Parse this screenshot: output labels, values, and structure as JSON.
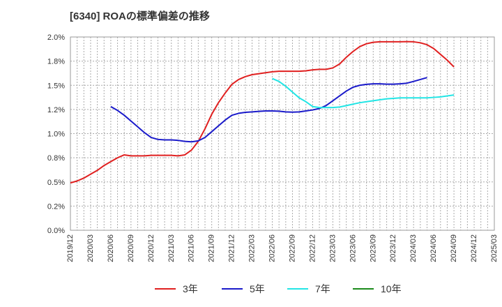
{
  "chart_data": {
    "type": "line",
    "title": "[6340]  ROAの標準偏差の推移",
    "xlabel": "",
    "ylabel": "",
    "ylim": [
      0,
      2.0
    ],
    "yticks": [
      "0.0%",
      "0.2%",
      "0.5%",
      "0.8%",
      "1.0%",
      "1.2%",
      "1.5%",
      "1.8%",
      "2.0%"
    ],
    "ytick_values": [
      0,
      0.25,
      0.5,
      0.75,
      1.0,
      1.25,
      1.5,
      1.75,
      2.0
    ],
    "xticks": [
      "2019/12",
      "2020/03",
      "2020/06",
      "2020/09",
      "2020/12",
      "2021/03",
      "2021/06",
      "2021/09",
      "2021/12",
      "2022/03",
      "2022/06",
      "2022/09",
      "2022/12",
      "2023/03",
      "2023/06",
      "2023/09",
      "2023/12",
      "2024/03",
      "2024/06",
      "2024/09",
      "2024/12",
      "2025/03"
    ],
    "grid": true,
    "legend_position": "bottom",
    "series": [
      {
        "name": "3年",
        "color": "#e02020",
        "start_index": 0,
        "values": [
          0.49,
          0.51,
          0.54,
          0.58,
          0.62,
          0.67,
          0.71,
          0.75,
          0.78,
          0.77,
          0.77,
          0.77,
          0.775,
          0.775,
          0.775,
          0.775,
          0.77,
          0.78,
          0.83,
          0.92,
          1.05,
          1.2,
          1.32,
          1.42,
          1.51,
          1.56,
          1.59,
          1.61,
          1.62,
          1.63,
          1.64,
          1.645,
          1.645,
          1.645,
          1.645,
          1.65,
          1.66,
          1.665,
          1.665,
          1.68,
          1.72,
          1.79,
          1.85,
          1.9,
          1.93,
          1.945,
          1.95,
          1.95,
          1.95,
          1.95,
          1.952,
          1.95,
          1.94,
          1.92,
          1.88,
          1.82,
          1.76,
          1.69
        ]
      },
      {
        "name": "5年",
        "color": "#1a1aca",
        "start_index": 6,
        "values": [
          1.28,
          1.24,
          1.19,
          1.13,
          1.07,
          1.01,
          0.96,
          0.94,
          0.935,
          0.935,
          0.93,
          0.92,
          0.915,
          0.925,
          0.96,
          1.02,
          1.08,
          1.14,
          1.19,
          1.21,
          1.22,
          1.225,
          1.23,
          1.235,
          1.235,
          1.232,
          1.225,
          1.222,
          1.225,
          1.235,
          1.245,
          1.26,
          1.29,
          1.34,
          1.39,
          1.44,
          1.48,
          1.5,
          1.51,
          1.515,
          1.515,
          1.512,
          1.512,
          1.515,
          1.522,
          1.54,
          1.56,
          1.58
        ]
      },
      {
        "name": "7年",
        "color": "#22e5e5",
        "start_index": 30,
        "values": [
          1.57,
          1.54,
          1.49,
          1.43,
          1.37,
          1.33,
          1.28,
          1.27,
          1.27,
          1.27,
          1.275,
          1.29,
          1.305,
          1.32,
          1.33,
          1.34,
          1.35,
          1.36,
          1.365,
          1.37,
          1.37,
          1.37,
          1.37,
          1.37,
          1.375,
          1.38,
          1.39,
          1.4
        ]
      },
      {
        "name": "10年",
        "color": "#1a8a1a",
        "start_index": null,
        "values": []
      }
    ]
  }
}
